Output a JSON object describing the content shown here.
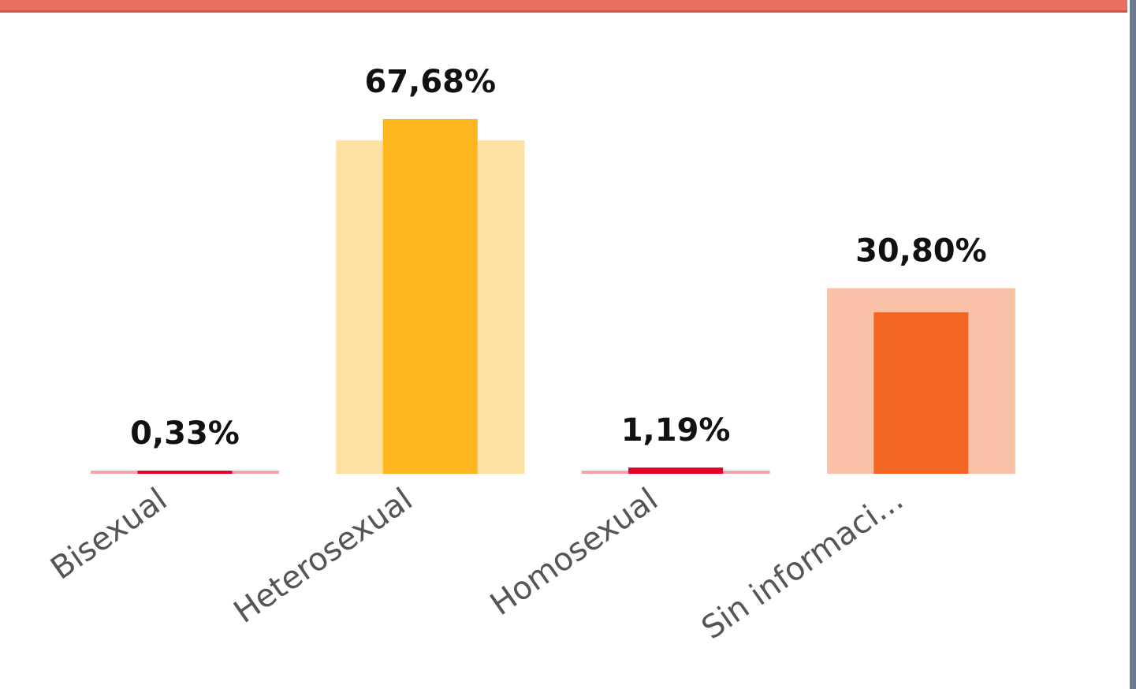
{
  "chart_data": {
    "type": "bar",
    "categories": [
      "Bisexual",
      "Heterosexual",
      "Homosexual",
      "Sin informaci..."
    ],
    "series": [
      {
        "colors": [
          "#f4a3ae",
          "#fde1a3",
          "#f4a3ae",
          "#f9c2a8"
        ],
        "values": [
          0.5,
          63.6,
          0.6,
          35.4
        ]
      },
      {
        "colors": [
          "#e4002b",
          "#fdb61d",
          "#e4002b",
          "#f26522"
        ],
        "values": [
          0.33,
          67.68,
          1.19,
          30.8
        ],
        "value_labels": [
          "0,33%",
          "67,68%",
          "1,19%",
          "30,80%"
        ]
      }
    ]
  }
}
